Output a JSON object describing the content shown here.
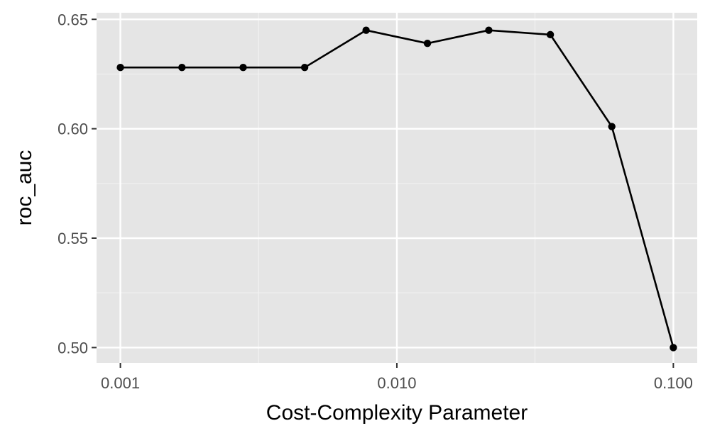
{
  "chart_data": {
    "type": "line",
    "title": "",
    "xlabel": "Cost-Complexity Parameter",
    "ylabel": "roc_auc",
    "x_scale": "log10",
    "xlim": [
      0.00082,
      0.122
    ],
    "ylim": [
      0.493,
      0.653
    ],
    "x_ticks": [
      {
        "value": 0.001,
        "label": "0.001"
      },
      {
        "value": 0.01,
        "label": "0.010"
      },
      {
        "value": 0.1,
        "label": "0.100"
      }
    ],
    "x_minor_ticks": [
      0.00316,
      0.0316
    ],
    "y_ticks": [
      {
        "value": 0.5,
        "label": "0.50"
      },
      {
        "value": 0.55,
        "label": "0.55"
      },
      {
        "value": 0.6,
        "label": "0.60"
      },
      {
        "value": 0.65,
        "label": "0.65"
      }
    ],
    "y_minor_ticks": [
      0.525,
      0.575,
      0.625
    ],
    "grid": true,
    "legend": "none",
    "colors": {
      "panel_background": "#e5e5e5",
      "grid_major": "#ffffff",
      "grid_minor": "#f2f2f2",
      "line": "#000000",
      "point": "#000000",
      "tick": "#333333"
    },
    "series": [
      {
        "x": [
          0.001,
          0.00167,
          0.00278,
          0.00464,
          0.00774,
          0.0129,
          0.0215,
          0.0359,
          0.0599,
          0.1
        ],
        "values": [
          0.628,
          0.628,
          0.628,
          0.628,
          0.645,
          0.639,
          0.645,
          0.643,
          0.601,
          0.5
        ]
      }
    ]
  }
}
